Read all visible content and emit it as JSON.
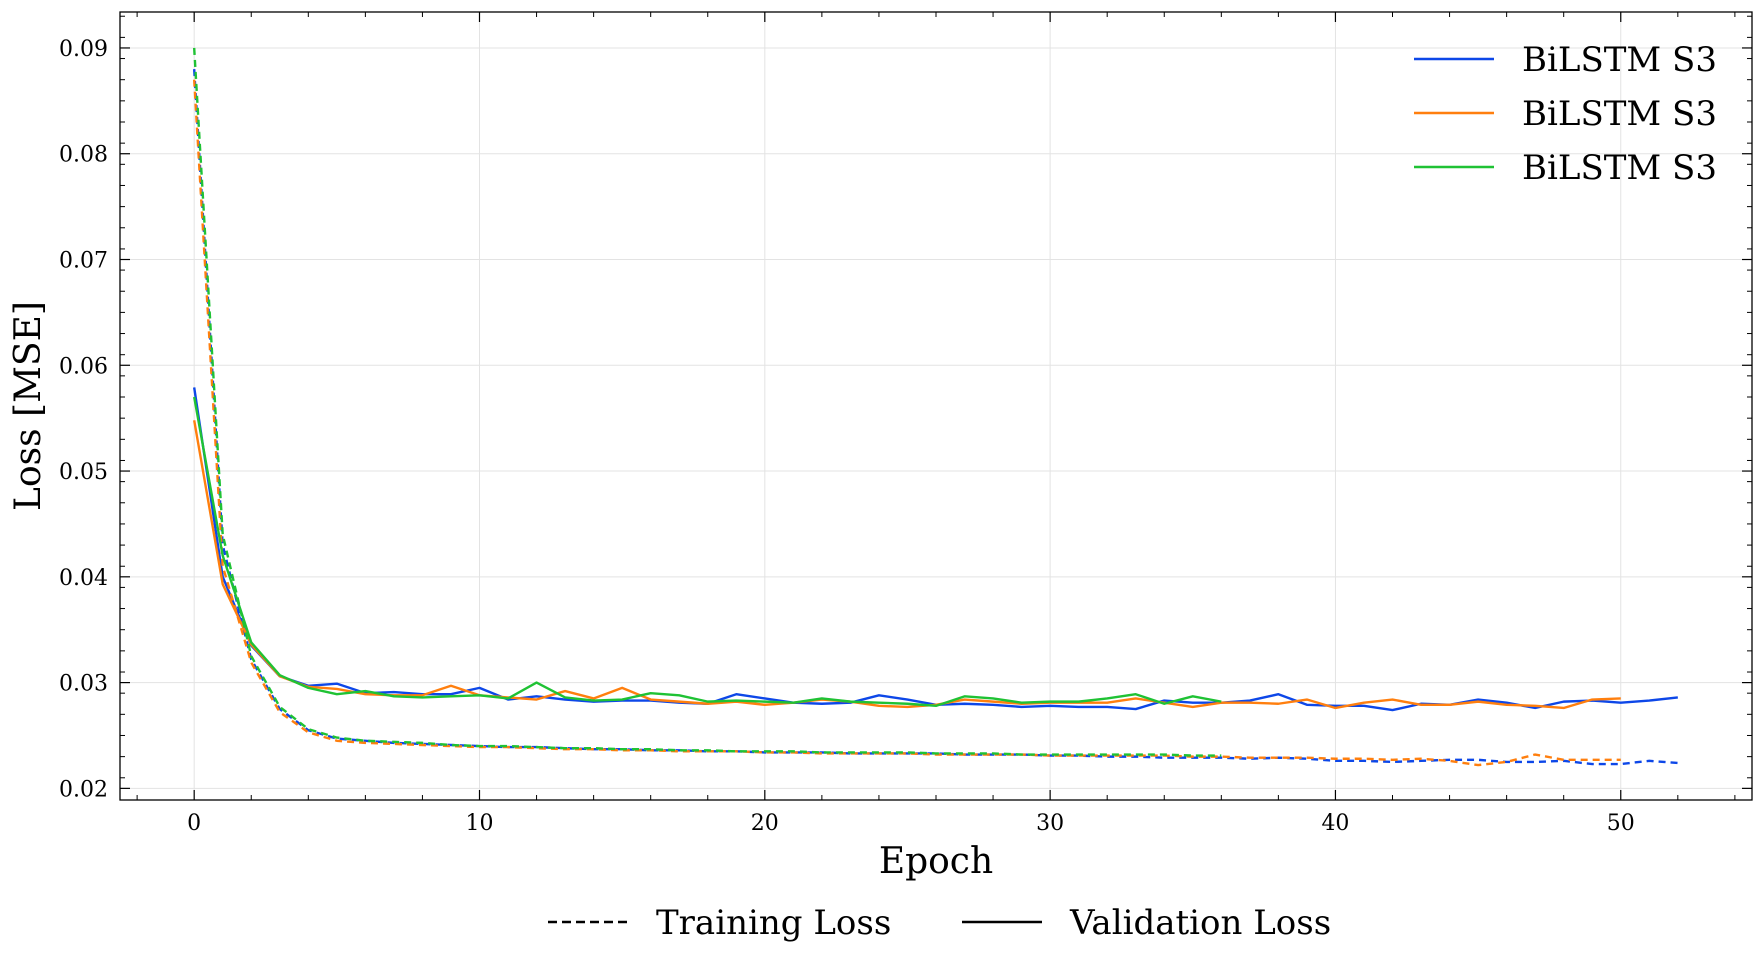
{
  "chart_data": {
    "type": "line",
    "xlabel": "Epoch",
    "ylabel": "Loss [MSE]",
    "xlim": [
      -2.6,
      54.6
    ],
    "ylim": [
      0.0189,
      0.0934
    ],
    "x_ticks": [
      0,
      10,
      20,
      30,
      40,
      50
    ],
    "y_ticks": [
      0.02,
      0.03,
      0.04,
      0.05,
      0.06,
      0.07,
      0.08,
      0.09
    ],
    "x_tick_labels": [
      "0",
      "10",
      "20",
      "30",
      "40",
      "50"
    ],
    "y_tick_labels": [
      "0.02",
      "0.03",
      "0.04",
      "0.05",
      "0.06",
      "0.07",
      "0.08",
      "0.09"
    ],
    "grid": true,
    "legend_position": "top-right",
    "legend_entries": [
      {
        "label": "BiLSTM S3",
        "color": "#0d47e8"
      },
      {
        "label": "BiLSTM S3",
        "color": "#ff7f0e"
      },
      {
        "label": "BiLSTM S3",
        "color": "#1fc234"
      }
    ],
    "style_legend_position": "bottom-center",
    "style_legend": [
      {
        "label": "Training Loss",
        "dash": "dashed"
      },
      {
        "label": "Validation Loss",
        "dash": "solid"
      }
    ],
    "series": [
      {
        "name": "BiLSTM S3",
        "color": "#0d47e8",
        "kind": "Validation Loss",
        "values": [
          0.0579,
          0.04,
          0.0335,
          0.0306,
          0.0297,
          0.0299,
          0.029,
          0.0291,
          0.0289,
          0.0289,
          0.0295,
          0.0284,
          0.0287,
          0.0284,
          0.0282,
          0.0283,
          0.0283,
          0.0281,
          0.028,
          0.0289,
          0.0285,
          0.0281,
          0.028,
          0.0281,
          0.0288,
          0.0284,
          0.0279,
          0.028,
          0.0279,
          0.0277,
          0.0278,
          0.0277,
          0.0277,
          0.0275,
          0.0283,
          0.0281,
          0.0281,
          0.0283,
          0.0289,
          0.0279,
          0.0278,
          0.0278,
          0.0274,
          0.028,
          0.0279,
          0.0284,
          0.0281,
          0.0276,
          0.0282,
          0.0283,
          0.0281,
          0.0283,
          0.0286
        ]
      },
      {
        "name": "BiLSTM S3",
        "color": "#0d47e8",
        "kind": "Training Loss",
        "values": [
          0.088,
          0.043,
          0.0322,
          0.0275,
          0.0255,
          0.0247,
          0.0245,
          0.0243,
          0.0242,
          0.0241,
          0.024,
          0.0239,
          0.0239,
          0.0238,
          0.0237,
          0.0237,
          0.0236,
          0.0236,
          0.0235,
          0.0235,
          0.0234,
          0.0234,
          0.0234,
          0.0233,
          0.0233,
          0.0233,
          0.0233,
          0.0232,
          0.0232,
          0.0232,
          0.0231,
          0.0231,
          0.023,
          0.023,
          0.0229,
          0.0229,
          0.0229,
          0.0228,
          0.0229,
          0.0228,
          0.0226,
          0.0226,
          0.0225,
          0.0226,
          0.0227,
          0.0227,
          0.0225,
          0.0225,
          0.0226,
          0.0223,
          0.0223,
          0.0226,
          0.0224
        ]
      },
      {
        "name": "BiLSTM S3",
        "color": "#ff7f0e",
        "kind": "Validation Loss",
        "values": [
          0.0548,
          0.0393,
          0.0336,
          0.0306,
          0.0296,
          0.0294,
          0.0289,
          0.0288,
          0.0288,
          0.0297,
          0.0288,
          0.0286,
          0.0284,
          0.0292,
          0.0285,
          0.0295,
          0.0284,
          0.0282,
          0.028,
          0.0282,
          0.0279,
          0.0281,
          0.0284,
          0.0282,
          0.0278,
          0.0277,
          0.0279,
          0.0284,
          0.0282,
          0.028,
          0.0281,
          0.0281,
          0.0281,
          0.0285,
          0.0281,
          0.0277,
          0.0281,
          0.0281,
          0.028,
          0.0284,
          0.0276,
          0.0281,
          0.0284,
          0.0279,
          0.0279,
          0.0282,
          0.0279,
          0.0278,
          0.0276,
          0.0284,
          0.0285
        ]
      },
      {
        "name": "BiLSTM S3",
        "color": "#ff7f0e",
        "kind": "Training Loss",
        "values": [
          0.087,
          0.041,
          0.0319,
          0.0272,
          0.0253,
          0.0245,
          0.0243,
          0.0242,
          0.0241,
          0.024,
          0.0239,
          0.0239,
          0.0238,
          0.0237,
          0.0237,
          0.0236,
          0.0236,
          0.0235,
          0.0235,
          0.0235,
          0.0234,
          0.0234,
          0.0233,
          0.0233,
          0.0233,
          0.0233,
          0.0232,
          0.0232,
          0.0232,
          0.0232,
          0.0231,
          0.0231,
          0.0231,
          0.0231,
          0.0231,
          0.023,
          0.023,
          0.0229,
          0.0229,
          0.0229,
          0.0228,
          0.0228,
          0.0227,
          0.0228,
          0.0226,
          0.0222,
          0.0225,
          0.0232,
          0.0227,
          0.0227,
          0.0227
        ]
      },
      {
        "name": "BiLSTM S3",
        "color": "#1fc234",
        "kind": "Validation Loss",
        "values": [
          0.057,
          0.042,
          0.0338,
          0.0307,
          0.0295,
          0.0289,
          0.0292,
          0.0287,
          0.0286,
          0.0287,
          0.0288,
          0.0285,
          0.03,
          0.0286,
          0.0283,
          0.0284,
          0.029,
          0.0288,
          0.0282,
          0.0283,
          0.0282,
          0.0281,
          0.0285,
          0.0282,
          0.0281,
          0.028,
          0.0278,
          0.0287,
          0.0285,
          0.0281,
          0.0282,
          0.0282,
          0.0285,
          0.0289,
          0.028,
          0.0287,
          0.0282
        ]
      },
      {
        "name": "BiLSTM S3",
        "color": "#1fc234",
        "kind": "Training Loss",
        "values": [
          0.09,
          0.044,
          0.0325,
          0.0277,
          0.0256,
          0.0248,
          0.0245,
          0.0244,
          0.0243,
          0.0241,
          0.024,
          0.024,
          0.0239,
          0.0238,
          0.0238,
          0.0237,
          0.0237,
          0.0236,
          0.0236,
          0.0235,
          0.0235,
          0.0235,
          0.0234,
          0.0234,
          0.0234,
          0.0234,
          0.0233,
          0.0233,
          0.0233,
          0.0232,
          0.0232,
          0.0232,
          0.0232,
          0.0232,
          0.0232,
          0.0231,
          0.0231
        ]
      }
    ]
  }
}
